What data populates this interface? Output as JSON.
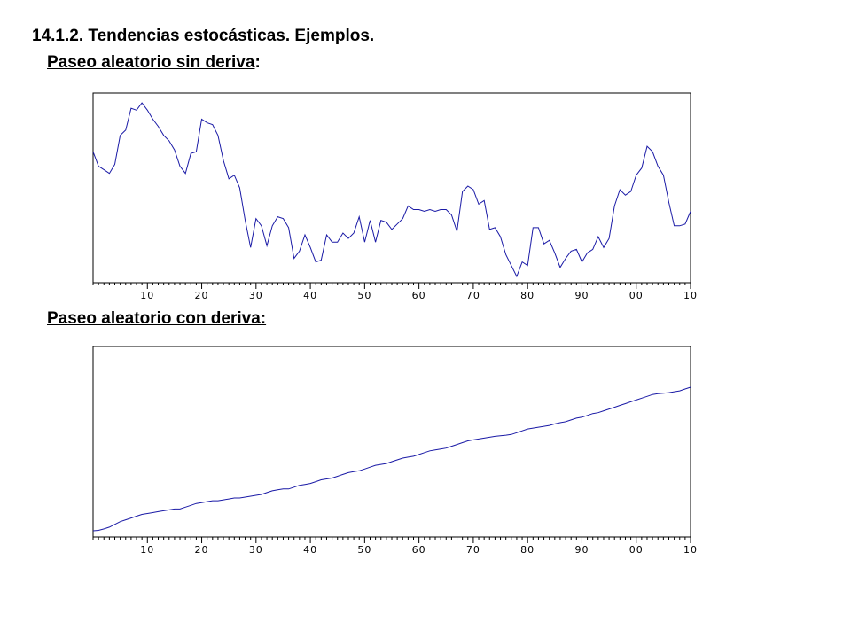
{
  "slide": {
    "title": "14.1.2. Tendencias estocásticas. Ejemplos.",
    "subtitle1": "Paseo aleatorio sin deriva",
    "subtitle1_suffix": ":",
    "subtitle2": "Paseo aleatorio con deriva:"
  },
  "chart_data": [
    {
      "type": "line",
      "title": "",
      "xlabel": "",
      "ylabel": "",
      "x_tick_labels": [
        "10",
        "20",
        "30",
        "40",
        "50",
        "60",
        "70",
        "80",
        "90",
        "00",
        "10"
      ],
      "x_ticks_at": [
        10,
        20,
        30,
        40,
        50,
        60,
        70,
        80,
        90,
        100,
        110
      ],
      "xlim": [
        0,
        110
      ],
      "ylim": [
        0,
        100
      ],
      "grid": false,
      "line_color": "#1a1aa6",
      "series": [
        {
          "name": "",
          "x_start": 0,
          "x_step": 1,
          "values": [
            70,
            62,
            60,
            58,
            63,
            79,
            82,
            94,
            93,
            97,
            93,
            88,
            84,
            79,
            76,
            71,
            62,
            58,
            69,
            70,
            88,
            86,
            85,
            79,
            65,
            55,
            57,
            50,
            32,
            17,
            33,
            29,
            18,
            29,
            34,
            33,
            28,
            11,
            15,
            24,
            17,
            9,
            10,
            24,
            20,
            20,
            25,
            22,
            25,
            34,
            20,
            32,
            20,
            32,
            31,
            27,
            30,
            33,
            40,
            38,
            38,
            37,
            38,
            37,
            38,
            38,
            35,
            26,
            48,
            51,
            49,
            41,
            43,
            27,
            28,
            23,
            13,
            7,
            1,
            9,
            7,
            28,
            28,
            19,
            21,
            14,
            6,
            11,
            15,
            16,
            9,
            14,
            16,
            23,
            17,
            22,
            40,
            49,
            46,
            48,
            57,
            61,
            73,
            70,
            62,
            57,
            42,
            29,
            29,
            30,
            37
          ]
        }
      ]
    },
    {
      "type": "line",
      "title": "",
      "xlabel": "",
      "ylabel": "",
      "x_tick_labels": [
        "10",
        "20",
        "30",
        "40",
        "50",
        "60",
        "70",
        "80",
        "90",
        "00",
        "10"
      ],
      "x_ticks_at": [
        10,
        20,
        30,
        40,
        50,
        60,
        70,
        80,
        90,
        100,
        110
      ],
      "xlim": [
        0,
        110
      ],
      "ylim": [
        0,
        100
      ],
      "grid": false,
      "line_color": "#1a1aa6",
      "series": [
        {
          "name": "",
          "x_start": 0,
          "x_step": 1,
          "values": [
            1,
            1.2,
            2,
            3,
            4.5,
            6,
            7,
            8,
            9,
            10,
            10.5,
            11,
            11.5,
            12,
            12.5,
            13,
            13,
            14,
            15,
            16,
            16.5,
            17,
            17.5,
            17.5,
            18,
            18.5,
            19,
            19,
            19.5,
            20,
            20.5,
            21,
            22,
            23,
            23.5,
            24,
            24,
            25,
            26,
            26.5,
            27,
            28,
            29,
            29.5,
            30,
            31,
            32,
            33,
            33.5,
            34,
            35,
            36,
            37,
            37.5,
            38,
            39,
            40,
            41,
            41.5,
            42,
            43,
            44,
            45,
            45.5,
            46,
            46.5,
            47.5,
            48.5,
            49.5,
            50.5,
            51,
            51.5,
            52,
            52.5,
            53,
            53.3,
            53.6,
            54,
            55,
            56,
            57,
            57.5,
            58,
            58.5,
            59,
            59.8,
            60.5,
            61,
            62,
            63,
            63.5,
            64.5,
            65.5,
            66,
            67,
            68,
            69,
            70,
            71,
            72,
            73,
            74,
            75,
            76,
            76.5,
            76.7,
            77,
            77.5,
            78,
            79,
            80
          ]
        }
      ]
    }
  ]
}
